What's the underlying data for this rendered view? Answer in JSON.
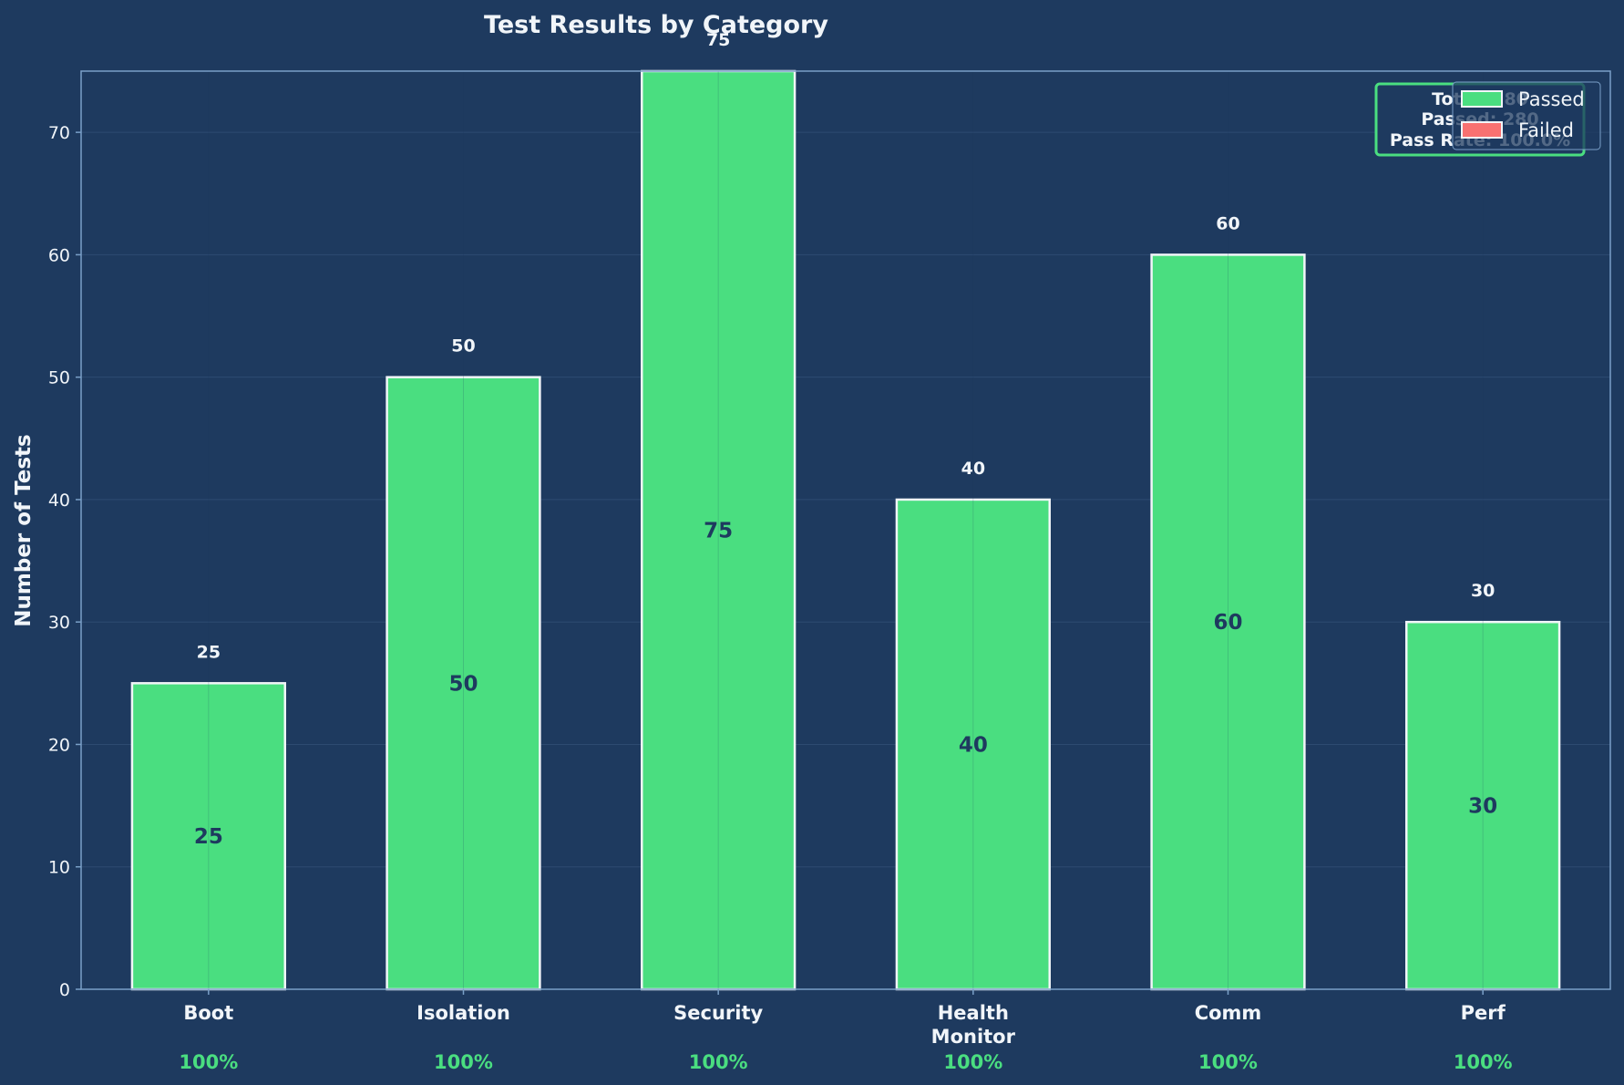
{
  "chart_data": {
    "type": "bar",
    "title": "Test Results by Category",
    "ylabel": "Number of Tests",
    "xlabel": "",
    "ylim": [
      0,
      75
    ],
    "yticks": [
      0,
      10,
      20,
      30,
      40,
      50,
      60,
      70
    ],
    "grid": true,
    "legend_position": "top-right",
    "categories": [
      "Boot",
      "Isolation",
      "Security",
      "Health Monitor",
      "Comm",
      "Perf"
    ],
    "category_lines": [
      [
        "Boot"
      ],
      [
        "Isolation"
      ],
      [
        "Security"
      ],
      [
        "Health",
        "Monitor"
      ],
      [
        "Comm"
      ],
      [
        "Perf"
      ]
    ],
    "pass_rates": [
      "100%",
      "100%",
      "100%",
      "100%",
      "100%",
      "100%"
    ],
    "series": [
      {
        "name": "Passed",
        "values": [
          25,
          50,
          75,
          40,
          60,
          30
        ],
        "color": "#4ade80"
      },
      {
        "name": "Failed",
        "values": [
          0,
          0,
          0,
          0,
          0,
          0
        ],
        "color": "#f87171"
      }
    ],
    "summary": {
      "total": "Total: 280",
      "passed": "Passed: 280",
      "pass_rate": "Pass Rate: 100.0%"
    },
    "colors": {
      "background": "#1e3a5f",
      "axes_edge": "#7aa0c8",
      "bar_edge": "#f1f5f9",
      "summary_border": "#4ade80",
      "text": "#f1f5f9",
      "rate_text": "#4ade80",
      "inner_label": "#1e3a5f"
    }
  }
}
